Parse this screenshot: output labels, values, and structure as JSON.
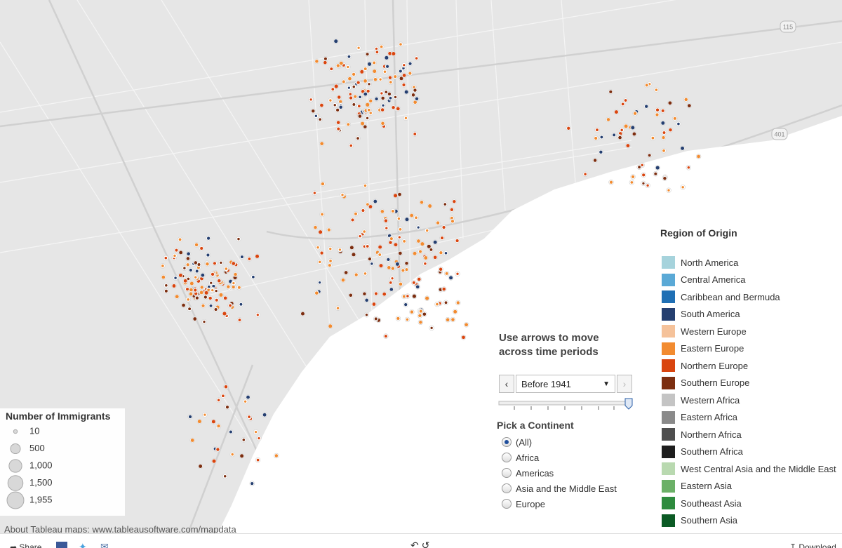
{
  "map": {
    "labels": [
      "115",
      "401"
    ],
    "attribution": "About Tableau maps: www.tableausoftware.com/mapdata"
  },
  "region_legend": {
    "title": "Region of Origin",
    "items": [
      {
        "name": "North America",
        "color": "#a6d3dc"
      },
      {
        "name": "Central America",
        "color": "#5aa9d6"
      },
      {
        "name": "Caribbean and Bermuda",
        "color": "#1f6fb4"
      },
      {
        "name": "South America",
        "color": "#253f70"
      },
      {
        "name": "Western Europe",
        "color": "#f5c29a"
      },
      {
        "name": "Eastern Europe",
        "color": "#f28b30"
      },
      {
        "name": "Northern Europe",
        "color": "#d9450f"
      },
      {
        "name": "Southern Europe",
        "color": "#7c2e10"
      },
      {
        "name": "Western Africa",
        "color": "#c4c4c4"
      },
      {
        "name": "Eastern Africa",
        "color": "#8a8a8a"
      },
      {
        "name": "Northern Africa",
        "color": "#4e4e4e"
      },
      {
        "name": "Southern Africa",
        "color": "#1d1d1d"
      },
      {
        "name": "West Central Asia and the Middle East",
        "color": "#b9d9b0"
      },
      {
        "name": "Eastern Asia",
        "color": "#6bb067"
      },
      {
        "name": "Southeast Asia",
        "color": "#2e8b3e"
      },
      {
        "name": "Southern Asia",
        "color": "#0b5a24"
      }
    ]
  },
  "size_legend": {
    "title": "Number of Immigrants",
    "items": [
      10,
      500,
      {
        "value": 1000,
        "label": "1,000"
      },
      {
        "value": 1500,
        "label": "1,500"
      },
      {
        "value": 1955,
        "label": "1,955"
      }
    ]
  },
  "time_control": {
    "title": "Use arrows to move across time periods",
    "period": "Before 1941"
  },
  "continent_filter": {
    "title": "Pick a Continent",
    "options": [
      "(All)",
      "Africa",
      "Americas",
      "Asia and the Middle East",
      "Europe"
    ]
  },
  "toolbar": {
    "share": "Share",
    "download": "Download"
  }
}
